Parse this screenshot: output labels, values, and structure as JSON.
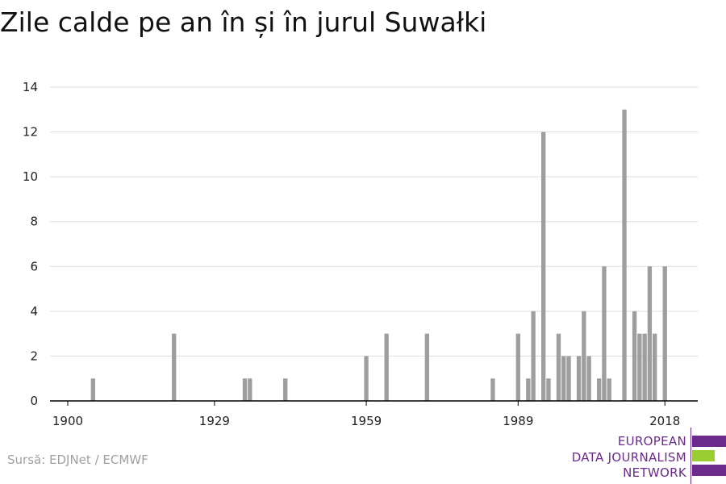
{
  "title": "Zile calde pe an în și în jurul Suwałki",
  "source": "Sursă: EDJNet / ECMWF",
  "logo": {
    "lines": [
      "EUROPEAN",
      "DATA JOURNALISM",
      "NETWORK"
    ],
    "colors": {
      "purple": "#6b2a8c",
      "green": "#9acd32"
    }
  },
  "colors": {
    "bar": "#9e9e9e",
    "grid": "#dddddd",
    "axis": "#000000",
    "text": "#222222"
  },
  "chart_data": {
    "type": "bar",
    "x": [
      1905,
      1921,
      1935,
      1936,
      1943,
      1959,
      1963,
      1971,
      1984,
      1989,
      1991,
      1992,
      1994,
      1995,
      1997,
      1998,
      1999,
      2001,
      2002,
      2003,
      2005,
      2006,
      2007,
      2010,
      2012,
      2013,
      2014,
      2015,
      2016,
      2018
    ],
    "values": [
      1,
      3,
      1,
      1,
      1,
      2,
      3,
      3,
      1,
      3,
      1,
      4,
      12,
      1,
      3,
      2,
      2,
      2,
      4,
      2,
      1,
      6,
      1,
      13,
      4,
      3,
      3,
      6,
      3,
      6
    ],
    "xticks": [
      "1900",
      "1929",
      "1959",
      "1989",
      "2018"
    ],
    "xtick_values": [
      1900,
      1929,
      1959,
      1989,
      2018
    ],
    "yticks": [
      "0",
      "2",
      "4",
      "6",
      "8",
      "10",
      "12",
      "14"
    ],
    "ylim": [
      0,
      14
    ],
    "xlim": [
      1896.5,
      2024.5
    ],
    "grid": true,
    "xlabel": "",
    "ylabel": ""
  }
}
